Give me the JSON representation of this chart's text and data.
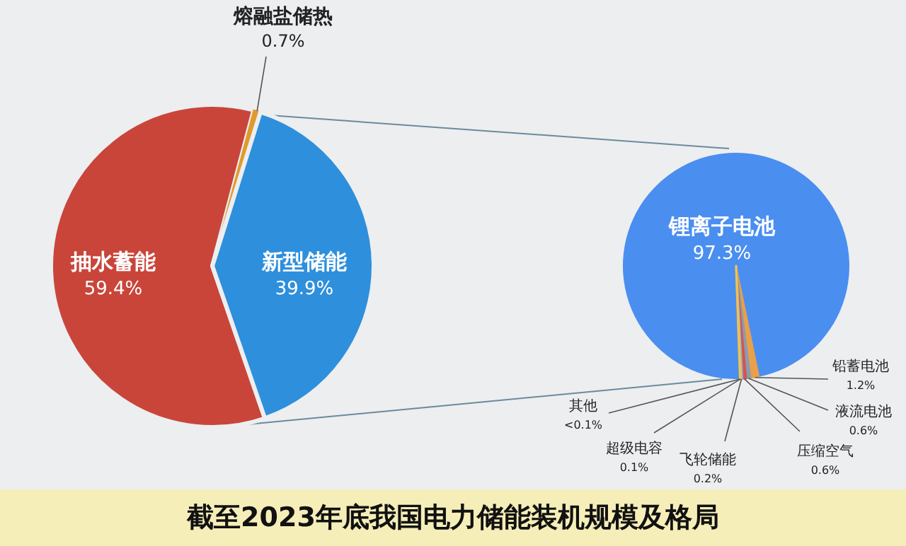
{
  "chart_data": [
    {
      "type": "pie",
      "title": "截至2023年底我国电力储能装机规模及格局",
      "categories": [
        "抽水蓄能",
        "熔融盐储热",
        "新型储能"
      ],
      "values": [
        59.4,
        0.7,
        39.9
      ],
      "value_labels": [
        "59.4%",
        "0.7%",
        "39.9%"
      ],
      "colors": [
        "#c9453a",
        "#e09a2c",
        "#2e8fdc"
      ]
    },
    {
      "type": "pie",
      "categories": [
        "锂离子电池",
        "铅蓄电池",
        "液流电池",
        "压缩空气",
        "飞轮储能",
        "超级电容",
        "其他"
      ],
      "values": [
        97.3,
        1.2,
        0.6,
        0.6,
        0.2,
        0.1,
        null
      ],
      "value_labels": [
        "97.3%",
        "1.2%",
        "0.6%",
        "0.6%",
        "0.2%",
        "0.1%",
        "<0.1%"
      ],
      "colors": [
        "#4a8ef0",
        "#e8a04a",
        "#8a9bb0",
        "#d9534f",
        "#7fb3e0",
        "#f2c14e",
        null
      ]
    }
  ]
}
